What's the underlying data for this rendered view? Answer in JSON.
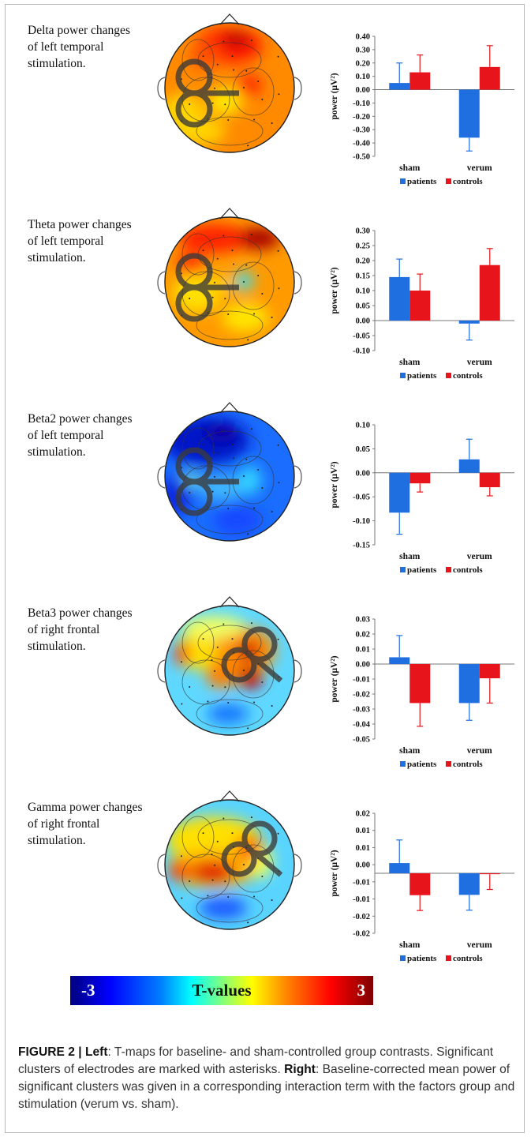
{
  "panels": [
    {
      "title_lines": [
        "Delta power changes",
        "of left temporal",
        "stimulation."
      ],
      "side": "left"
    },
    {
      "title_lines": [
        "Theta power changes",
        "of left temporal",
        "stimulation."
      ],
      "side": "left"
    },
    {
      "title_lines": [
        "Beta2 power changes",
        "of left temporal",
        "stimulation."
      ],
      "side": "left"
    },
    {
      "title_lines": [
        "Beta3 power changes",
        "of right frontal",
        "stimulation."
      ],
      "side": "right"
    },
    {
      "title_lines": [
        "Gamma power changes",
        "of right frontal",
        "stimulation."
      ],
      "side": "right"
    }
  ],
  "colorbar": {
    "min_label": "-3",
    "title": "T-values",
    "max_label": "3"
  },
  "colors": {
    "patients": "#1f6fe0",
    "controls": "#e8141c",
    "frame": "#b9b9b9"
  },
  "caption": {
    "figure_label": "FIGURE 2 | ",
    "left_label": "Left",
    "left_text": ": T-maps for baseline- and sham-controlled group contrasts. Significant clusters of electrodes are marked with asterisks. ",
    "right_label": "Right",
    "right_text": ": Baseline-corrected mean power of significant clusters was given in a corresponding interaction term with the factors group and stimulation (verum vs. sham)."
  },
  "chart_data": [
    {
      "type": "bar",
      "categories": [
        "sham",
        "verum"
      ],
      "series": [
        {
          "name": "patients",
          "values": [
            0.05,
            -0.36
          ],
          "errors": [
            0.15,
            0.1
          ]
        },
        {
          "name": "controls",
          "values": [
            0.13,
            0.17
          ],
          "errors": [
            0.13,
            0.16
          ]
        }
      ],
      "ylabel": "power (μV²)",
      "ylim": [
        -0.5,
        0.4
      ],
      "yticks": [
        "0.40",
        "0.30",
        "0.20",
        "0.10",
        "0.00",
        "-0.10",
        "-0.20",
        "-0.30",
        "-0.40",
        "-0.50"
      ],
      "legend": "bottom"
    },
    {
      "type": "bar",
      "categories": [
        "sham",
        "verum"
      ],
      "series": [
        {
          "name": "patients",
          "values": [
            0.145,
            -0.01
          ],
          "errors": [
            0.06,
            0.055
          ]
        },
        {
          "name": "controls",
          "values": [
            0.1,
            0.185
          ],
          "errors": [
            0.055,
            0.055
          ]
        }
      ],
      "ylabel": "power (μV²)",
      "ylim": [
        -0.1,
        0.3
      ],
      "yticks": [
        "0.30",
        "0.25",
        "0.20",
        "0.15",
        "0.10",
        "0.05",
        "0.00",
        "-0.05",
        "-0.10"
      ],
      "legend": "bottom"
    },
    {
      "type": "bar",
      "categories": [
        "sham",
        "verum"
      ],
      "series": [
        {
          "name": "patients",
          "values": [
            -0.083,
            0.028
          ],
          "errors": [
            0.045,
            0.042
          ]
        },
        {
          "name": "controls",
          "values": [
            -0.022,
            -0.03
          ],
          "errors": [
            0.018,
            0.018
          ]
        }
      ],
      "ylabel": "power (μV²)",
      "ylim": [
        -0.15,
        0.1
      ],
      "yticks": [
        "0.10",
        "0.05",
        "0.00",
        "-0.05",
        "-0.10",
        "-0.15"
      ],
      "legend": "bottom"
    },
    {
      "type": "bar",
      "categories": [
        "sham",
        "verum"
      ],
      "series": [
        {
          "name": "patients",
          "values": [
            0.0045,
            -0.026
          ],
          "errors": [
            0.0145,
            0.0115
          ]
        },
        {
          "name": "controls",
          "values": [
            -0.026,
            -0.0095
          ],
          "errors": [
            0.0155,
            0.0165
          ]
        }
      ],
      "ylabel": "power (μV²)",
      "ylim": [
        -0.05,
        0.03
      ],
      "yticks": [
        "0.03",
        "0.02",
        "0.01",
        "0.00",
        "-0.01",
        "-0.02",
        "-0.03",
        "-0.04",
        "-0.05"
      ],
      "legend": "bottom"
    },
    {
      "type": "bar",
      "categories": [
        "sham",
        "verum"
      ],
      "series": [
        {
          "name": "patients",
          "values": [
            0.0034,
            -0.0072
          ],
          "errors": [
            0.0077,
            0.0051
          ]
        },
        {
          "name": "controls",
          "values": [
            -0.0073,
            -0.0003
          ],
          "errors": [
            0.0051,
            0.0051
          ]
        }
      ],
      "ylabel": "power (μV²)",
      "ylim": [
        -0.02,
        0.02
      ],
      "yticks": [
        "0.02",
        "0.01",
        "0.01",
        "0.00",
        "-0.01",
        "-0.01",
        "-0.02",
        "-0.02"
      ],
      "legend": "bottom"
    }
  ]
}
